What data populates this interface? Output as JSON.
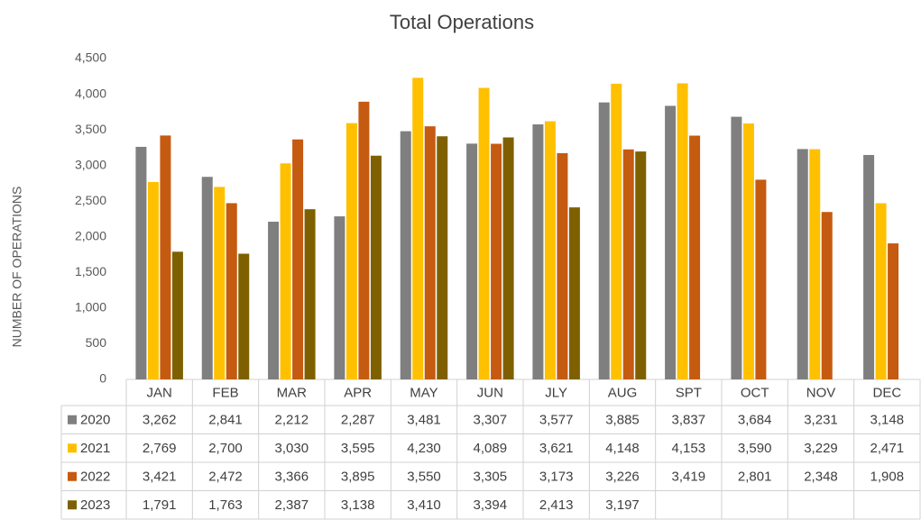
{
  "chart_data": {
    "type": "bar",
    "title": "Total Operations",
    "y_label": "NUMBER OF OPERATIONS",
    "categories": [
      "JAN",
      "FEB",
      "MAR",
      "APR",
      "MAY",
      "JUN",
      "JLY",
      "AUG",
      "SPT",
      "OCT",
      "NOV",
      "DEC"
    ],
    "series": [
      {
        "name": "2020",
        "color": "#7f7f7f",
        "values": [
          3262,
          2841,
          2212,
          2287,
          3481,
          3307,
          3577,
          3885,
          3837,
          3684,
          3231,
          3148
        ],
        "value_labels": [
          "3,262",
          "2,841",
          "2,212",
          "2,287",
          "3,481",
          "3,307",
          "3,577",
          "3,885",
          "3,837",
          "3,684",
          "3,231",
          "3,148"
        ]
      },
      {
        "name": "2021",
        "color": "#ffc000",
        "values": [
          2769,
          2700,
          3030,
          3595,
          4230,
          4089,
          3621,
          4148,
          4153,
          3590,
          3229,
          2471
        ],
        "value_labels": [
          "2,769",
          "2,700",
          "3,030",
          "3,595",
          "4,230",
          "4,089",
          "3,621",
          "4,148",
          "4,153",
          "3,590",
          "3,229",
          "2,471"
        ]
      },
      {
        "name": "2022",
        "color": "#c55a11",
        "values": [
          3421,
          2472,
          3366,
          3895,
          3550,
          3305,
          3173,
          3226,
          3419,
          2801,
          2348,
          1908
        ],
        "value_labels": [
          "3,421",
          "2,472",
          "3,366",
          "3,895",
          "3,550",
          "3,305",
          "3,173",
          "3,226",
          "3,419",
          "2,801",
          "2,348",
          "1,908"
        ]
      },
      {
        "name": "2023",
        "color": "#7f6000",
        "values": [
          1791,
          1763,
          2387,
          3138,
          3410,
          3394,
          2413,
          3197,
          null,
          null,
          null,
          null
        ],
        "value_labels": [
          "1,791",
          "1,763",
          "2,387",
          "3,138",
          "3,410",
          "3,394",
          "2,413",
          "3,197",
          null,
          null,
          null,
          null
        ]
      }
    ],
    "ylim": [
      0,
      4500
    ],
    "yticks": [
      0,
      500,
      {
        "value": 1000,
        "label": "1,000"
      },
      {
        "value": 1500,
        "label": "1,500"
      },
      {
        "value": 2000,
        "label": "2,000"
      },
      {
        "value": 2500,
        "label": "2,500"
      },
      {
        "value": 3000,
        "label": "3,000"
      },
      {
        "value": 3500,
        "label": "3,500"
      },
      {
        "value": 4000,
        "label": "4,000"
      },
      {
        "value": 4500,
        "label": "4,500"
      }
    ],
    "grid": false,
    "legend": "data-table"
  }
}
